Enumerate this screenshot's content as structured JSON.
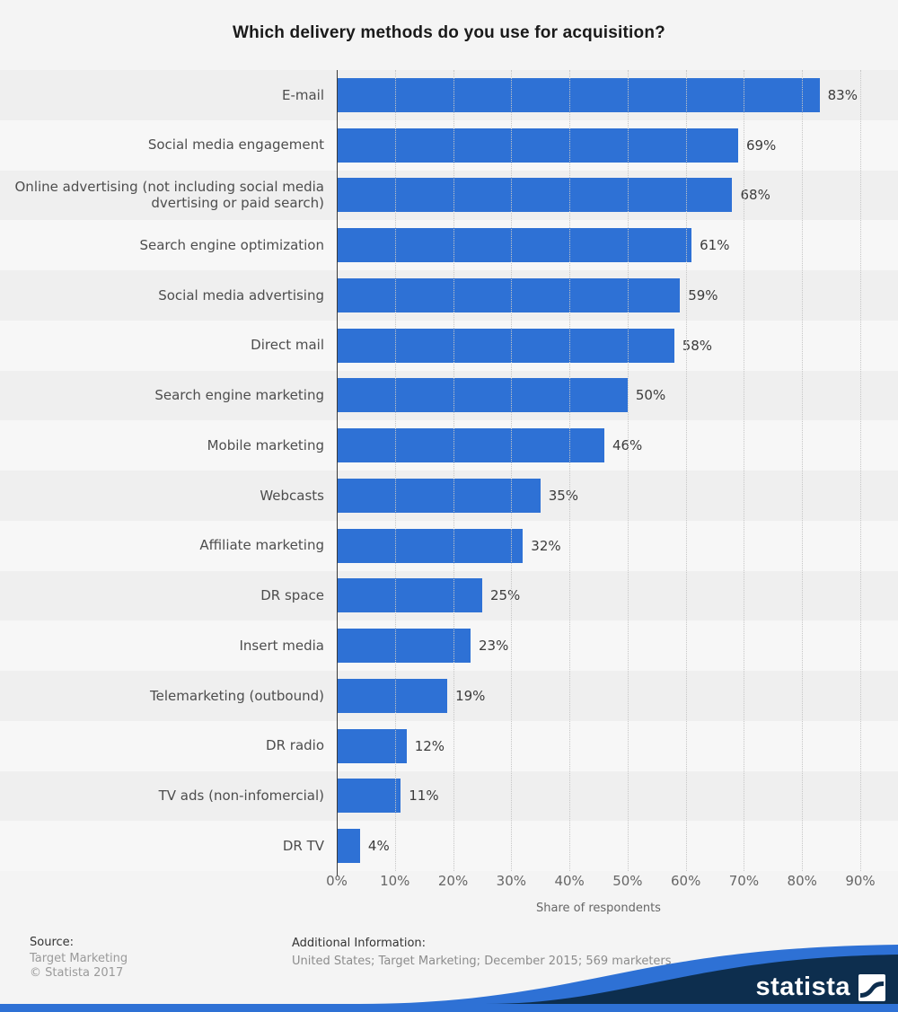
{
  "title": "Which delivery methods do you use for acquisition?",
  "chart_data": {
    "type": "bar",
    "orientation": "horizontal",
    "title": "Which delivery methods do you use for acquisition?",
    "categories": [
      "E-mail",
      "Social media engagement",
      "Online advertising (not including social media dvertising or paid search)",
      "Search engine optimization",
      "Social media advertising",
      "Direct mail",
      "Search engine marketing",
      "Mobile marketing",
      "Webcasts",
      "Affiliate marketing",
      "DR space",
      "Insert media",
      "Telemarketing (outbound)",
      "DR radio",
      "TV ads (non-infomercial)",
      "DR TV"
    ],
    "values": [
      83,
      69,
      68,
      61,
      59,
      58,
      50,
      46,
      35,
      32,
      25,
      23,
      19,
      12,
      11,
      4
    ],
    "value_labels": [
      "83%",
      "69%",
      "68%",
      "61%",
      "59%",
      "58%",
      "50%",
      "46%",
      "35%",
      "32%",
      "25%",
      "23%",
      "19%",
      "12%",
      "11%",
      "4%"
    ],
    "unit": "%",
    "xlabel": "Share of respondents",
    "x_ticks": [
      "0%",
      "10%",
      "20%",
      "30%",
      "40%",
      "50%",
      "60%",
      "70%",
      "80%",
      "90%"
    ],
    "xlim": [
      0,
      90
    ],
    "grid": "vertical-dotted",
    "legend": "none",
    "bar_color": "#2e71d5",
    "stripe_colors": [
      "#efefef",
      "#f7f7f7"
    ]
  },
  "footer": {
    "source_heading": "Source:",
    "source_line1": "Target Marketing",
    "source_line2": "© Statista 2017",
    "additional_heading": "Additional Information:",
    "additional_text": "United States; Target Marketing; December 2015; 569 marketers"
  },
  "branding": {
    "logo_text": "statista",
    "navy": "#0d2e4e",
    "blue": "#2e71d5"
  }
}
